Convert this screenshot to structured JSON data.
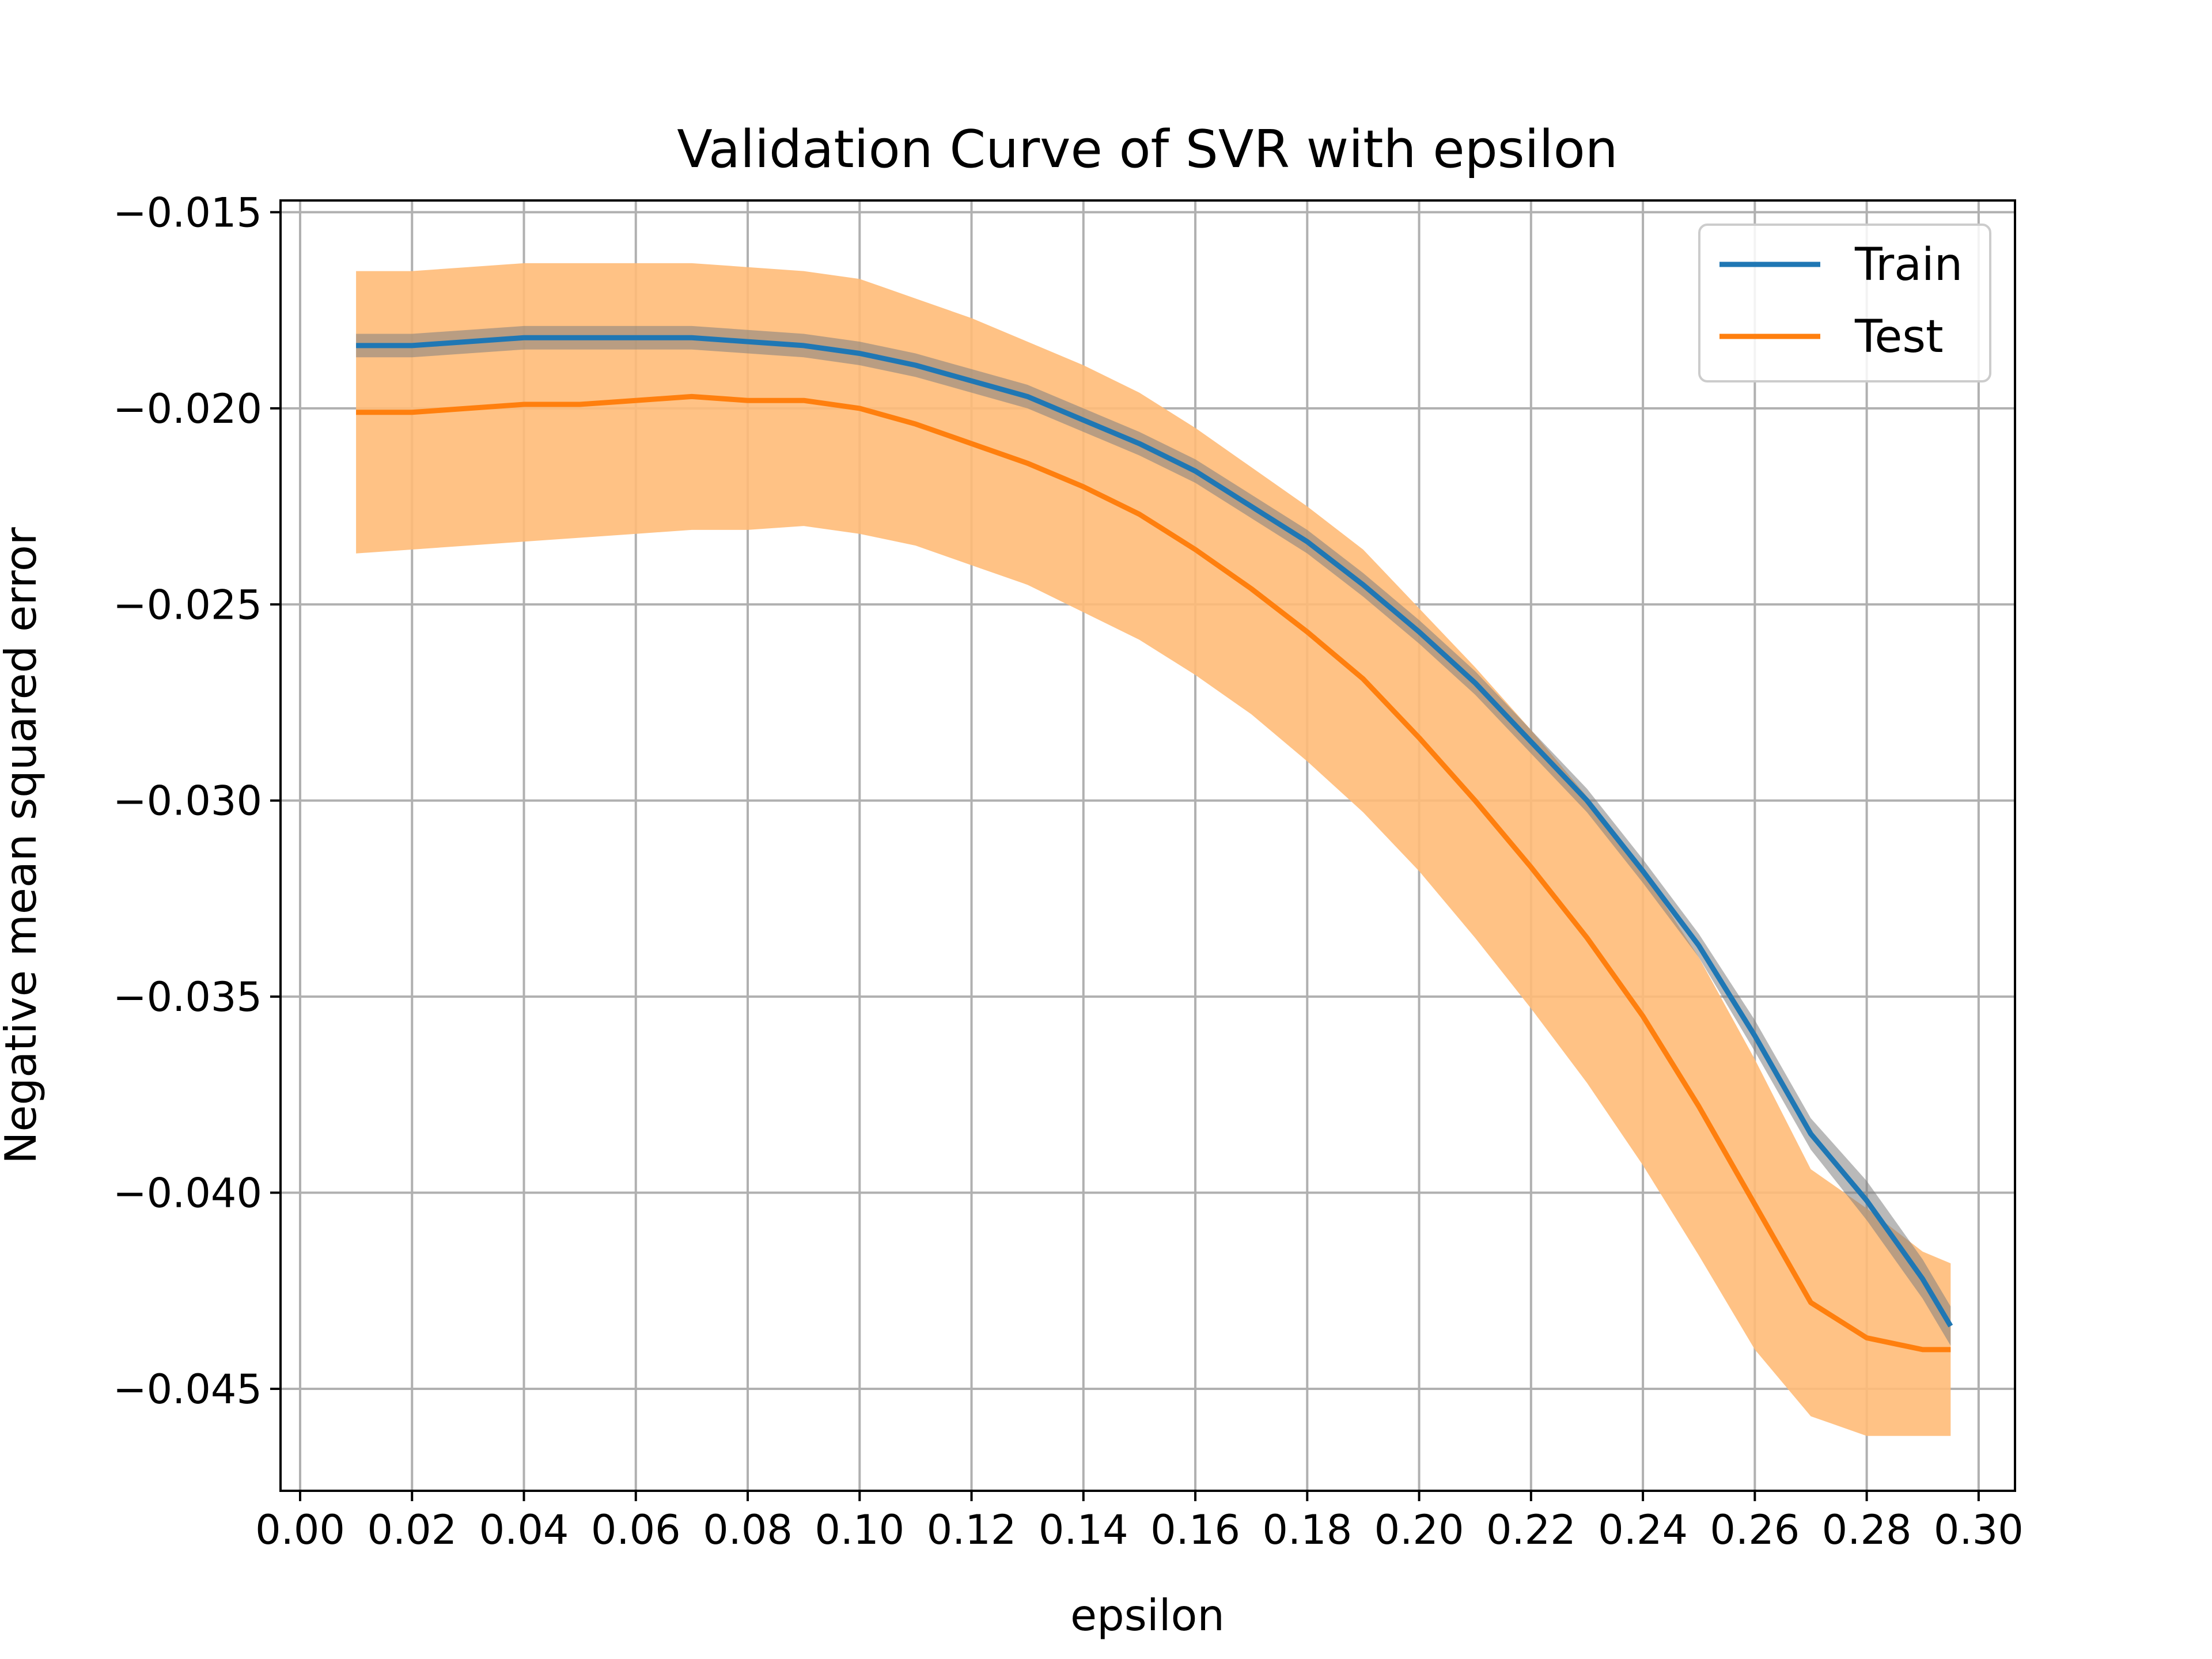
{
  "chart_data": {
    "type": "line",
    "title": "Validation Curve of SVR with epsilon",
    "xlabel": "epsilon",
    "ylabel": "Negative mean squared error",
    "xlim": [
      -0.0035,
      0.3065
    ],
    "ylim": [
      -0.0476,
      -0.0147
    ],
    "x_ticks": [
      0.0,
      0.02,
      0.04,
      0.06,
      0.08,
      0.1,
      0.12,
      0.14,
      0.16,
      0.18,
      0.2,
      0.22,
      0.24,
      0.26,
      0.28,
      0.3
    ],
    "x_tick_labels": [
      "0.00",
      "0.02",
      "0.04",
      "0.06",
      "0.08",
      "0.10",
      "0.12",
      "0.14",
      "0.16",
      "0.18",
      "0.20",
      "0.22",
      "0.24",
      "0.26",
      "0.28",
      "0.30"
    ],
    "y_ticks": [
      -0.045,
      -0.04,
      -0.035,
      -0.03,
      -0.025,
      -0.02,
      -0.015
    ],
    "y_tick_labels": [
      "−0.045",
      "−0.040",
      "−0.035",
      "−0.030",
      "−0.025",
      "−0.020",
      "−0.015"
    ],
    "grid": true,
    "legend_position": "top-right",
    "x": [
      0.01,
      0.02,
      0.03,
      0.04,
      0.05,
      0.06,
      0.07,
      0.08,
      0.09,
      0.1,
      0.11,
      0.12,
      0.13,
      0.14,
      0.15,
      0.16,
      0.17,
      0.18,
      0.19,
      0.2,
      0.21,
      0.22,
      0.23,
      0.24,
      0.25,
      0.26,
      0.27,
      0.28,
      0.29,
      0.295
    ],
    "series": [
      {
        "name": "Train",
        "color": "#1f77b4",
        "values": [
          -0.0184,
          -0.0184,
          -0.0183,
          -0.0182,
          -0.0182,
          -0.0182,
          -0.0182,
          -0.0183,
          -0.0184,
          -0.0186,
          -0.0189,
          -0.0193,
          -0.0197,
          -0.0203,
          -0.0209,
          -0.0216,
          -0.0225,
          -0.0234,
          -0.0245,
          -0.0257,
          -0.027,
          -0.0285,
          -0.03,
          -0.0318,
          -0.0337,
          -0.036,
          -0.0385,
          -0.0402,
          -0.0422,
          -0.0434
        ],
        "band_lower": [
          -0.0187,
          -0.0187,
          -0.0186,
          -0.0185,
          -0.0185,
          -0.0185,
          -0.0185,
          -0.0186,
          -0.0187,
          -0.0189,
          -0.0192,
          -0.0196,
          -0.02,
          -0.0206,
          -0.0212,
          -0.0219,
          -0.0228,
          -0.0237,
          -0.0248,
          -0.026,
          -0.0273,
          -0.0288,
          -0.0303,
          -0.0321,
          -0.034,
          -0.0364,
          -0.0389,
          -0.0407,
          -0.0427,
          -0.0439
        ],
        "band_upper": [
          -0.0181,
          -0.0181,
          -0.018,
          -0.0179,
          -0.0179,
          -0.0179,
          -0.0179,
          -0.018,
          -0.0181,
          -0.0183,
          -0.0186,
          -0.019,
          -0.0194,
          -0.02,
          -0.0206,
          -0.0213,
          -0.0222,
          -0.0231,
          -0.0242,
          -0.0254,
          -0.0267,
          -0.0282,
          -0.0297,
          -0.0315,
          -0.0334,
          -0.0356,
          -0.0381,
          -0.0397,
          -0.0417,
          -0.0429
        ],
        "band_color": "#7f7f7f"
      },
      {
        "name": "Test",
        "color": "#ff7f0e",
        "values": [
          -0.0201,
          -0.0201,
          -0.02,
          -0.0199,
          -0.0199,
          -0.0198,
          -0.0197,
          -0.0198,
          -0.0198,
          -0.02,
          -0.0204,
          -0.0209,
          -0.0214,
          -0.022,
          -0.0227,
          -0.0236,
          -0.0246,
          -0.0257,
          -0.0269,
          -0.0284,
          -0.03,
          -0.0317,
          -0.0335,
          -0.0355,
          -0.0378,
          -0.0403,
          -0.0428,
          -0.0437,
          -0.044,
          -0.044
        ],
        "band_lower": [
          -0.0237,
          -0.0236,
          -0.0235,
          -0.0234,
          -0.0233,
          -0.0232,
          -0.0231,
          -0.0231,
          -0.023,
          -0.0232,
          -0.0235,
          -0.024,
          -0.0245,
          -0.0252,
          -0.0259,
          -0.0268,
          -0.0278,
          -0.029,
          -0.0303,
          -0.0318,
          -0.0335,
          -0.0353,
          -0.0372,
          -0.0393,
          -0.0416,
          -0.044,
          -0.0457,
          -0.0462,
          -0.0462,
          -0.0462
        ],
        "band_upper": [
          -0.0165,
          -0.0165,
          -0.0164,
          -0.0163,
          -0.0163,
          -0.0163,
          -0.0163,
          -0.0164,
          -0.0165,
          -0.0167,
          -0.0172,
          -0.0177,
          -0.0183,
          -0.0189,
          -0.0196,
          -0.0205,
          -0.0215,
          -0.0225,
          -0.0236,
          -0.0251,
          -0.0266,
          -0.0282,
          -0.0299,
          -0.0318,
          -0.034,
          -0.0366,
          -0.0394,
          -0.0404,
          -0.0415,
          -0.0418
        ],
        "band_color": "#ffbb78"
      }
    ]
  }
}
